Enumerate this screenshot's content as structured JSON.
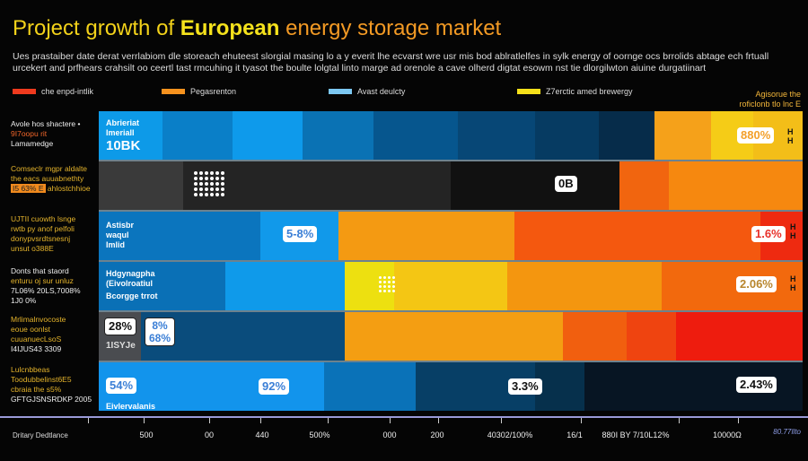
{
  "chart_data": {
    "type": "bar",
    "title_parts": [
      "Project growth of ",
      "European",
      " energy storage market"
    ],
    "subtitle": "Ues prastaiber date derat verrlabiom dle storeach ehuteest slorgial masing lo a y everit lhe ecvarst wre usr mis bod ablratlelfes in sylk energy of oornge ocs brrolids abtage ech frtuall urcekert and prfhears crahsilt oo ceertl tast rmcuhing it tyasot the boulte lolgtal linto marge ad orenole a cave olherd digtat esowm nst tie dlorgilwton aiuine durgatiinart",
    "legend": [
      {
        "label": "che enpd-intlik",
        "color": "#ef3a1e"
      },
      {
        "label": "Pegasrenton",
        "color": "#f6921e"
      },
      {
        "label": "Avast deulcty",
        "color": "#7cc8f2"
      },
      {
        "label": "Z7erctic amed brewergy",
        "color": "#f5e01a"
      }
    ],
    "corner_note": [
      "Agisorue the",
      "roficlonb tlo lnc E"
    ],
    "xlabel": "Dritary Dedtlance",
    "x_end_label": "80.77Ilto",
    "x_ticks": [
      "500",
      "00",
      "440",
      "500%",
      "000",
      "200",
      "40302/100%",
      "16/1",
      "880I BY 7/10L12%",
      "10000Ω"
    ],
    "rows": [
      {
        "label_lines": [
          "Avole hos shactere •",
          "9I7oopu rit",
          "Lamamedge"
        ],
        "inner_label": [
          "Abrieriat",
          "Imeriall",
          "10BK"
        ],
        "badges": [
          "880%"
        ],
        "segments": [
          {
            "value": 9,
            "color": "#0d9ae8"
          },
          {
            "value": 10,
            "color": "#0a7fc8"
          },
          {
            "value": 10,
            "color": "#0e9aeb"
          },
          {
            "value": 10,
            "color": "#0a72b4"
          },
          {
            "value": 12,
            "color": "#06568e"
          },
          {
            "value": 11,
            "color": "#074776"
          },
          {
            "value": 9,
            "color": "#063b62"
          },
          {
            "value": 8,
            "color": "#062c4a"
          },
          {
            "value": 8,
            "color": "#f5a11a"
          },
          {
            "value": 6,
            "color": "#f5cc17"
          },
          {
            "value": 7,
            "color": "#f3be18"
          }
        ]
      },
      {
        "label_lines": [
          "Comseclr mgpr aldalte",
          "the eacs auuabnethty",
          "I5 63% E",
          "ahlostchhioe"
        ],
        "inner_label": [],
        "badges": [
          "0B"
        ],
        "segments": [
          {
            "value": 12,
            "color": "#3a3a3a"
          },
          {
            "value": 38,
            "color": "#242424"
          },
          {
            "value": 24,
            "color": "#111111"
          },
          {
            "value": 7,
            "color": "#f1650f"
          },
          {
            "value": 19,
            "color": "#f6880f"
          }
        ]
      },
      {
        "label_lines": [
          "UJTII cuowth lsnge",
          "rwtb py anof pelfoli",
          "donypvsrdtsnesnj",
          "unsut o388E"
        ],
        "inner_label": [
          "Astisbr",
          "waqul",
          "Imlid"
        ],
        "badges": [
          "5-8%",
          "1.6%"
        ],
        "segments": [
          {
            "value": 23,
            "color": "#0b75be"
          },
          {
            "value": 11,
            "color": "#1199ea"
          },
          {
            "value": 25,
            "color": "#f49a12"
          },
          {
            "value": 35,
            "color": "#f4580f"
          },
          {
            "value": 6,
            "color": "#ee2a10"
          }
        ]
      },
      {
        "label_lines": [
          "Donts that staord",
          "enturu oj sur unluz",
          "7L06% 20LS,7008%",
          "1J0 0%"
        ],
        "inner_label": [
          "Hdgynagpha",
          "(Eivolroatiul",
          "Bcorgge trrot"
        ],
        "badges": [
          "2.06%"
        ],
        "segments": [
          {
            "value": 18,
            "color": "#0a70b6"
          },
          {
            "value": 17,
            "color": "#0f9aea"
          },
          {
            "value": 7,
            "color": "#ede010"
          },
          {
            "value": 16,
            "color": "#f4c614"
          },
          {
            "value": 22,
            "color": "#f4960f"
          },
          {
            "value": 20,
            "color": "#f2690d"
          }
        ]
      },
      {
        "label_lines": [
          "Mrlimalnvocoste",
          "eoue oonlst",
          "cuuanuecLsoS",
          "I4IJUS43 3309"
        ],
        "inner_label": [
          "1ISYJe"
        ],
        "badges": [
          "28%",
          "8%",
          "68%"
        ],
        "segments": [
          {
            "value": 6,
            "color": "#4a4c50"
          },
          {
            "value": 29,
            "color": "#0a4c7c"
          },
          {
            "value": 31,
            "color": "#f49e12"
          },
          {
            "value": 9,
            "color": "#f15f0f"
          },
          {
            "value": 7,
            "color": "#ef4410"
          },
          {
            "value": 18,
            "color": "#ee1c0e"
          }
        ]
      },
      {
        "label_lines": [
          "Lulcnbbeas",
          "Toodubbelinst6E5",
          "cbraia the s5%",
          "GFTGJSNSRDKP 2005"
        ],
        "inner_label": [
          "Eivlervalanis"
        ],
        "badges": [
          "54%",
          "92%",
          "3.3%",
          "2.43%"
        ],
        "segments": [
          {
            "value": 32,
            "color": "#1294ec"
          },
          {
            "value": 13,
            "color": "#0a72b8"
          },
          {
            "value": 17,
            "color": "#073f66"
          },
          {
            "value": 7,
            "color": "#06304c"
          },
          {
            "value": 31,
            "color": "#071523"
          }
        ]
      }
    ]
  }
}
